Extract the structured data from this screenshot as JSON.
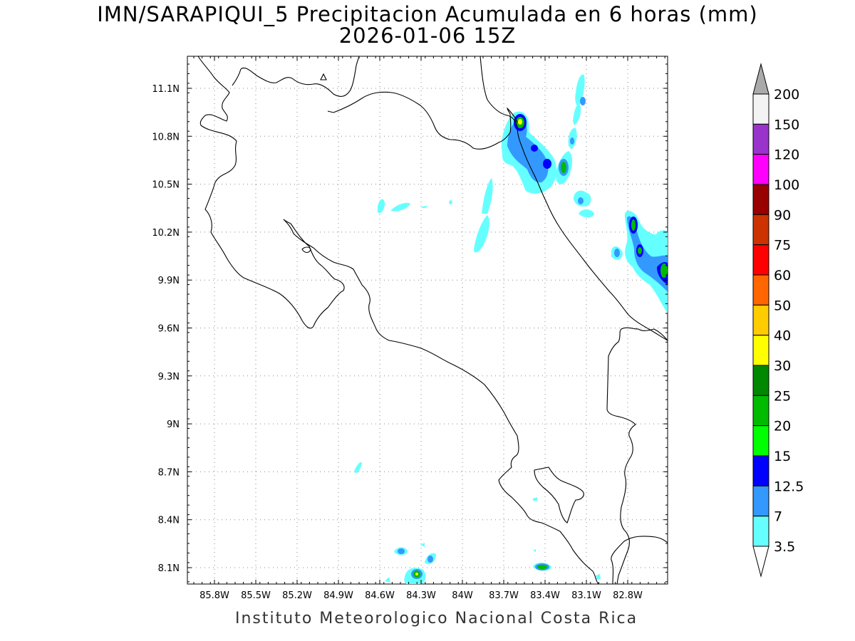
{
  "title": {
    "line1": "IMN/SARAPIQUI_5 Precipitacion Acumulada en 6 horas (mm)",
    "line2": "2026-01-06 15Z"
  },
  "footer": "Instituto Meteorologico Nacional Costa Rica",
  "map": {
    "region": "Costa Rica",
    "projection": "lat-lon",
    "grid": "dotted",
    "lon_ticks": [
      "85.8W",
      "85.5W",
      "85.2W",
      "84.9W",
      "84.6W",
      "84.3W",
      "84W",
      "83.7W",
      "83.4W",
      "83.1W",
      "82.8W"
    ],
    "lat_ticks": [
      "11.1N",
      "10.8N",
      "10.5N",
      "10.2N",
      "9.9N",
      "9.6N",
      "9.3N",
      "9N",
      "8.7N",
      "8.4N",
      "8.1N"
    ]
  },
  "colorbar": {
    "levels": [
      "200",
      "150",
      "120",
      "100",
      "90",
      "75",
      "60",
      "50",
      "40",
      "30",
      "25",
      "20",
      "15",
      "12.5",
      "7",
      "3.5"
    ],
    "colors": [
      "#f3f3f3",
      "#9933cc",
      "#ff00ff",
      "#990000",
      "#cc3300",
      "#ff0000",
      "#ff6600",
      "#ffcc00",
      "#ffff00",
      "#008800",
      "#00bb00",
      "#00ff00",
      "#0000ff",
      "#3399ff",
      "#66ffff"
    ],
    "over_color": "#aaaaaa",
    "under_color": "#ffffff"
  }
}
